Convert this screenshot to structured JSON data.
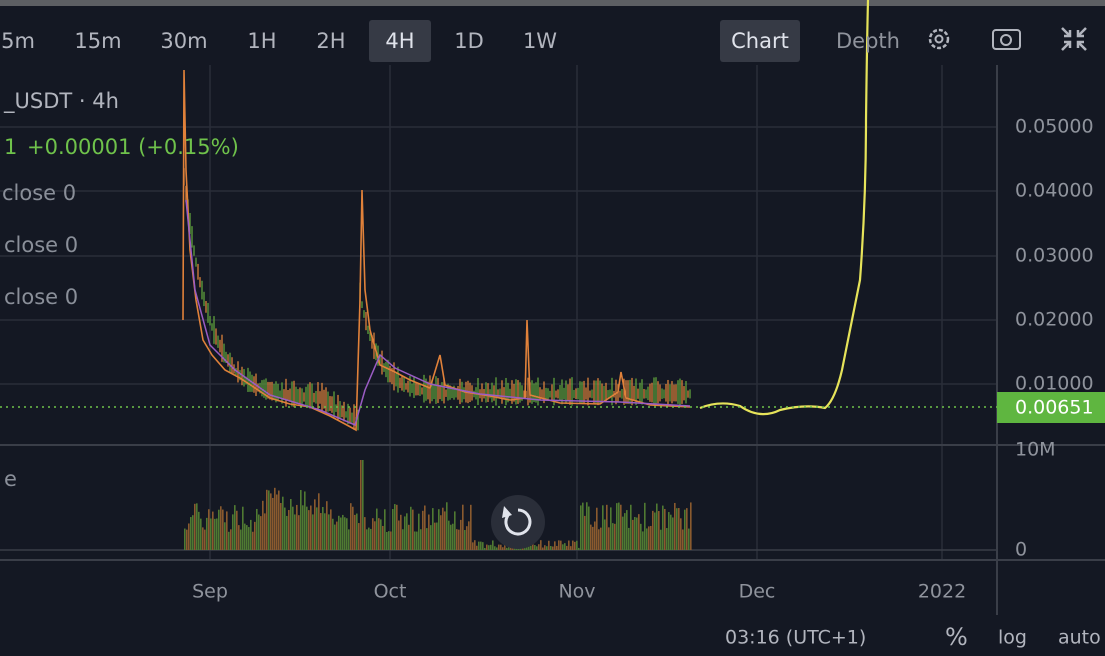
{
  "toolbar": {
    "intervals": [
      "5m",
      "15m",
      "30m",
      "1H",
      "2H",
      "4H",
      "1D",
      "1W"
    ],
    "active_interval": "4H",
    "views": [
      "Chart",
      "Depth"
    ],
    "active_view": "Chart"
  },
  "legend": {
    "symbol": "_USDT · 4h",
    "last": "1",
    "change": "+0.00001 (+0.15%)",
    "indicators": [
      "close 0",
      "close 0",
      "close 0"
    ],
    "volume_label": "e"
  },
  "price_axis": {
    "ticks": [
      "0.05000",
      "0.04000",
      "0.03000",
      "0.02000",
      "0.01000"
    ],
    "last_price": "0.00651"
  },
  "volume_axis": {
    "ticks": [
      "10M",
      "0"
    ]
  },
  "time_axis": {
    "ticks": [
      "Sep",
      "Oct",
      "Nov",
      "Dec",
      "2022"
    ]
  },
  "footer": {
    "time": "03:16 (UTC+1)",
    "percent": "%",
    "log": "log",
    "auto": "auto"
  }
}
